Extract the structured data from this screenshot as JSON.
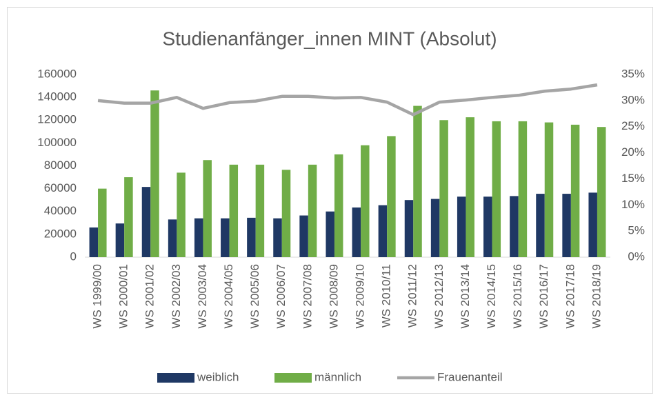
{
  "chart_data": {
    "type": "bar_line",
    "title": "Studienanfänger_innen MINT (Absolut)",
    "categories": [
      "WS 1999/00",
      "WS 2000/01",
      "WS 2001/02",
      "WS 2002/03",
      "WS 2003/04",
      "WS 2004/05",
      "WS 2005/06",
      "WS 2006/07",
      "WS 2007/08",
      "WS 2008/09",
      "WS 2009/10",
      "WS 2010/11",
      "WS 2011/12",
      "WS 2012/13",
      "WS 2013/14",
      "WS 2014/15",
      "WS 2015/16",
      "WS 2016/17",
      "WS 2017/18",
      "WS 2018/19"
    ],
    "series": [
      {
        "name": "weiblich",
        "type": "bar",
        "color": "#1f3864",
        "values": [
          26000,
          29500,
          61500,
          33000,
          34000,
          34000,
          34500,
          34000,
          36500,
          40000,
          43500,
          45500,
          50000,
          51000,
          53000,
          53000,
          53500,
          55500,
          55500,
          56500
        ]
      },
      {
        "name": "männlich",
        "type": "bar",
        "color": "#70ad47",
        "values": [
          60000,
          70000,
          146000,
          74000,
          85000,
          81000,
          81000,
          76500,
          81000,
          90000,
          98000,
          106000,
          132500,
          120000,
          122500,
          119000,
          119000,
          118000,
          116000,
          114000
        ]
      },
      {
        "name": "Frauenanteil",
        "type": "line",
        "axis": "y2",
        "color": "#a5a5a5",
        "values": [
          30.0,
          29.5,
          29.5,
          30.6,
          28.5,
          29.6,
          29.9,
          30.8,
          30.8,
          30.5,
          30.6,
          29.7,
          27.3,
          29.7,
          30.1,
          30.6,
          31.0,
          31.8,
          32.2,
          33.0
        ]
      }
    ],
    "ylim": [
      0,
      160000
    ],
    "yticks": [
      0,
      20000,
      40000,
      60000,
      80000,
      100000,
      120000,
      140000,
      160000
    ],
    "y2lim": [
      0,
      35
    ],
    "y2ticks": [
      {
        "value": 0,
        "label": "0%"
      },
      {
        "value": 5,
        "label": "5%"
      },
      {
        "value": 10,
        "label": "10%"
      },
      {
        "value": 15,
        "label": "15%"
      },
      {
        "value": 20,
        "label": "20%"
      },
      {
        "value": 25,
        "label": "25%"
      },
      {
        "value": 30,
        "label": "30%"
      },
      {
        "value": 35,
        "label": "35%"
      }
    ],
    "grid": false,
    "legend": "bottom"
  }
}
